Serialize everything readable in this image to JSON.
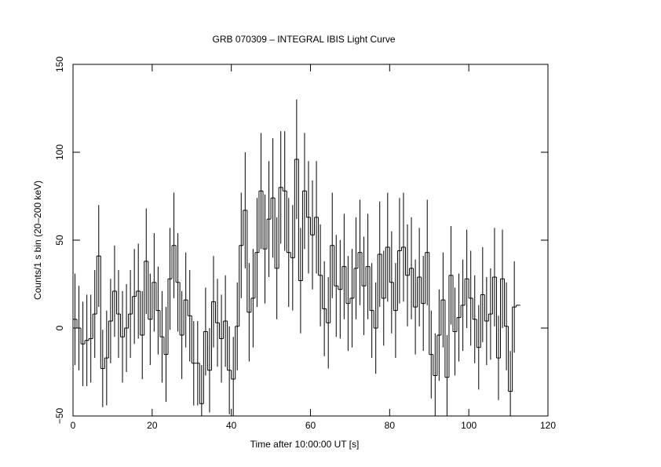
{
  "chart_data": {
    "type": "histogram",
    "title": "GRB 070309 – INTEGRAL IBIS Light Curve",
    "x_label": "Time after 10:00:00 UT [s]",
    "y_label": "Counts/1 s bin (20–200 keV)",
    "bins": [
      0,
      1,
      2,
      3,
      4,
      5,
      6,
      7,
      8,
      9,
      10,
      11,
      12,
      13,
      14,
      15,
      16,
      17,
      18,
      19,
      20,
      21,
      22,
      23,
      24,
      25,
      26,
      27,
      28,
      29,
      30,
      31,
      32,
      33,
      34,
      35,
      36,
      37,
      38,
      39,
      40,
      41,
      42,
      43,
      44,
      45,
      46,
      47,
      48,
      49,
      50,
      51,
      52,
      53,
      54,
      55,
      56,
      57,
      58,
      59,
      60,
      61,
      62,
      63,
      64,
      65,
      66,
      67,
      68,
      69,
      70,
      71,
      72,
      73,
      74,
      75,
      76,
      77,
      78,
      79,
      80,
      81,
      82,
      83,
      84,
      85,
      86,
      87,
      88,
      89,
      90,
      91,
      92,
      93,
      94,
      95,
      96,
      97,
      98,
      99,
      100,
      101,
      102,
      103,
      104,
      105,
      106,
      107,
      108,
      109,
      110,
      111,
      112,
      113
    ],
    "values": [
      5,
      0,
      -9,
      -7,
      -6,
      8,
      41,
      -23,
      -17,
      4,
      21,
      8,
      -5,
      0,
      8,
      18,
      21,
      -4,
      38,
      5,
      26,
      10,
      -5,
      -15,
      28,
      47,
      26,
      -4,
      16,
      7,
      -20,
      -20,
      -43,
      -2,
      -24,
      15,
      3,
      -6,
      4,
      -24,
      -29,
      1,
      47,
      67,
      9,
      17,
      43,
      78,
      45,
      62,
      74,
      34,
      80,
      78,
      43,
      40,
      96,
      27,
      78,
      63,
      53,
      63,
      30,
      11,
      3,
      47,
      24,
      22,
      35,
      14,
      17,
      34,
      43,
      24,
      35,
      10,
      0,
      42,
      17,
      46,
      26,
      10,
      44,
      46,
      30,
      34,
      12,
      29,
      14,
      43,
      -15,
      -27,
      -4,
      16,
      -28,
      30,
      -2,
      6,
      13,
      28,
      17,
      5,
      -11,
      19,
      4,
      8,
      29,
      -17,
      28,
      1,
      -36,
      12,
      13
    ],
    "errors": [
      26,
      24,
      24,
      26,
      25,
      25,
      29,
      22,
      27,
      24,
      26,
      25,
      26,
      25,
      25,
      27,
      27,
      25,
      30,
      26,
      28,
      25,
      26,
      27,
      29,
      30,
      28,
      25,
      27,
      26,
      24,
      24,
      22,
      25,
      24,
      26,
      25,
      25,
      26,
      25,
      24,
      25,
      30,
      33,
      28,
      28,
      31,
      33,
      31,
      33,
      34,
      29,
      32,
      34,
      31,
      30,
      34,
      30,
      33,
      32,
      31,
      32,
      29,
      27,
      26,
      30,
      29,
      28,
      30,
      27,
      28,
      29,
      30,
      28,
      30,
      27,
      26,
      30,
      27,
      31,
      29,
      27,
      30,
      31,
      29,
      29,
      27,
      28,
      27,
      30,
      25,
      24,
      26,
      27,
      24,
      28,
      25,
      25,
      26,
      28,
      27,
      25,
      24,
      27,
      25,
      26,
      28,
      24,
      28,
      25,
      23,
      26,
      0
    ],
    "color": "#000000",
    "xlim": [
      0,
      120
    ],
    "ylim": [
      -50,
      150
    ],
    "xticks": [
      0,
      20,
      40,
      60,
      80,
      100,
      120
    ],
    "yticks": [
      {
        "value": -50,
        "label": "−50"
      },
      0,
      50,
      100,
      150
    ]
  }
}
